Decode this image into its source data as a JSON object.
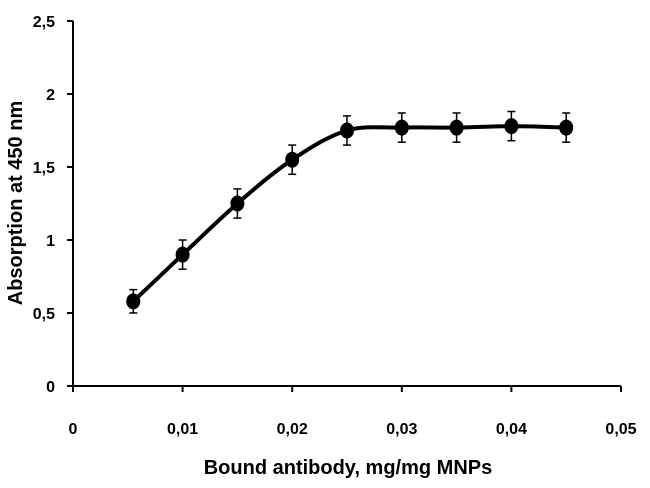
{
  "chart_data": {
    "type": "line",
    "xlabel": "Bound antibody, mg/mg MNPs",
    "ylabel": "Absorption at 450 nm",
    "xlim": [
      0,
      0.05
    ],
    "ylim": [
      0,
      2.5
    ],
    "x_ticks": [
      0,
      0.01,
      0.02,
      0.03,
      0.04,
      0.05
    ],
    "x_tick_labels": [
      "0",
      "0,01",
      "0,02",
      "0,03",
      "0,04",
      "0,05"
    ],
    "y_ticks": [
      0,
      0.5,
      1,
      1.5,
      2,
      2.5
    ],
    "y_tick_labels": [
      "0",
      "0,5",
      "1",
      "1,5",
      "2",
      "2,5"
    ],
    "grid": false,
    "legend": "none",
    "line_color": "#000000",
    "series": [
      {
        "x": [
          0.0055,
          0.01,
          0.015,
          0.02,
          0.025,
          0.03,
          0.035,
          0.04,
          0.045
        ],
        "y": [
          0.58,
          0.9,
          1.25,
          1.55,
          1.75,
          1.77,
          1.77,
          1.78,
          1.77
        ],
        "error": [
          0.08,
          0.1,
          0.1,
          0.1,
          0.1,
          0.1,
          0.1,
          0.1,
          0.1
        ]
      }
    ]
  }
}
